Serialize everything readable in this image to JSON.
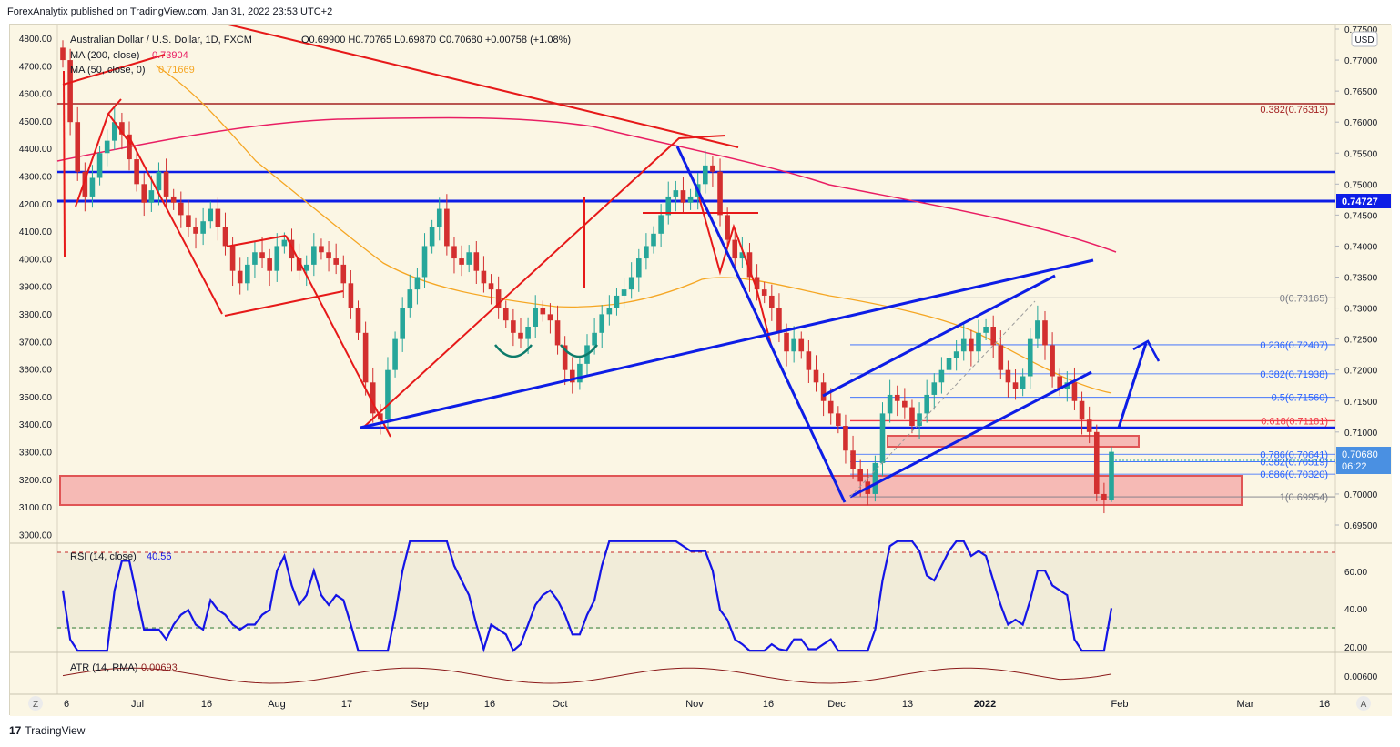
{
  "header": {
    "published_by": "ForexAnalytix published on TradingView.com, Jan 31, 2022 23:53 UTC+2"
  },
  "legend": {
    "symbol": "Australian Dollar / U.S. Dollar, 1D, FXCM",
    "ohlc": "O0.69900  H0.70765  L0.69870  C0.70680  +0.00758 (+1.08%)",
    "ma200_label": "MA (200, close)",
    "ma200_value": "0.73904",
    "ma50_label": "MA (50, close, 0)",
    "ma50_value": "0.71669",
    "rsi_label": "RSI (14, close)",
    "rsi_value": "40.56",
    "atr_label": "ATR (14, RMA)",
    "atr_value": "0.00693"
  },
  "right_axis": {
    "currency": "USD",
    "ticks": [
      "0.77500",
      "0.77000",
      "0.76500",
      "0.76000",
      "0.75500",
      "0.75000",
      "0.74500",
      "0.74000",
      "0.73500",
      "0.73000",
      "0.72500",
      "0.72000",
      "0.71500",
      "0.71000",
      "0.70500",
      "0.70000",
      "0.69500"
    ],
    "level_label": "0.74727",
    "price_label": "0.70680",
    "countdown": "06:22",
    "rsi_ticks": [
      "60.00",
      "40.00",
      "20.00"
    ],
    "atr_ticks": [
      "0.00600"
    ]
  },
  "left_axis": {
    "ticks": [
      "4800.00",
      "4700.00",
      "4600.00",
      "4500.00",
      "4400.00",
      "4300.00",
      "4200.00",
      "4100.00",
      "4000.00",
      "3900.00",
      "3800.00",
      "3700.00",
      "3600.00",
      "3500.00",
      "3400.00",
      "3300.00",
      "3200.00",
      "3100.00",
      "3000.00"
    ]
  },
  "time_axis": {
    "labels": [
      "6",
      "Jul",
      "16",
      "Aug",
      "17",
      "Sep",
      "16",
      "Oct",
      "Nov",
      "16",
      "Dec",
      "13",
      "2022",
      "Feb",
      "Mar",
      "16"
    ],
    "scale_button": "Z",
    "auto_button": "A"
  },
  "fib_top": {
    "label": "0.382(0.76313)"
  },
  "fib_levels": [
    {
      "label": "0(0.73165)",
      "color": "#787b86"
    },
    {
      "label": "0.236(0.72407)",
      "color": "#2962ff"
    },
    {
      "label": "0.382(0.71938)",
      "color": "#2962ff"
    },
    {
      "label": "0.5(0.71560)",
      "color": "#2962ff"
    },
    {
      "label": "0.618(0.71181)",
      "color": "#f23645"
    },
    {
      "label": "0.786(0.70641)",
      "color": "#2962ff"
    },
    {
      "label": "0.382(0.70519)",
      "color": "#2962ff"
    },
    {
      "label": "0.886(0.70320)",
      "color": "#2962ff"
    },
    {
      "label": "1(0.69954)",
      "color": "#787b86"
    }
  ],
  "colors": {
    "bull": "#26a69a",
    "bear": "#d32f2f",
    "ma200": "#e91e63",
    "ma50": "#f5a623",
    "drawing_blue": "#0d1de6",
    "drawing_red": "#e61919",
    "rsi": "#1414e6"
  },
  "chart_data": {
    "type": "candlestick",
    "symbol": "Australian Dollar / U.S. Dollar, 1D, FXCM",
    "ylim": [
      0.6935,
      0.778
    ],
    "last_candle": {
      "open": 0.699,
      "high": 0.70765,
      "low": 0.6987,
      "close": 0.7068
    },
    "rsi_last": 40.56,
    "atr_last": 0.00693,
    "ma200_last": 0.73904,
    "ma50_last": 0.71669,
    "closes": [
      0.77,
      0.76,
      0.752,
      0.748,
      0.751,
      0.755,
      0.757,
      0.76,
      0.758,
      0.754,
      0.75,
      0.747,
      0.749,
      0.752,
      0.748,
      0.747,
      0.745,
      0.743,
      0.742,
      0.744,
      0.746,
      0.743,
      0.74,
      0.736,
      0.734,
      0.737,
      0.739,
      0.738,
      0.736,
      0.74,
      0.741,
      0.738,
      0.736,
      0.737,
      0.74,
      0.739,
      0.738,
      0.737,
      0.734,
      0.73,
      0.726,
      0.718,
      0.713,
      0.712,
      0.72,
      0.725,
      0.73,
      0.733,
      0.735,
      0.74,
      0.743,
      0.746,
      0.74,
      0.738,
      0.737,
      0.739,
      0.736,
      0.734,
      0.733,
      0.73,
      0.728,
      0.726,
      0.725,
      0.727,
      0.73,
      0.729,
      0.728,
      0.724,
      0.72,
      0.718,
      0.721,
      0.724,
      0.726,
      0.729,
      0.73,
      0.732,
      0.733,
      0.735,
      0.738,
      0.74,
      0.742,
      0.745,
      0.748,
      0.749,
      0.747,
      0.748,
      0.75,
      0.753,
      0.752,
      0.745,
      0.741,
      0.738,
      0.739,
      0.735,
      0.733,
      0.732,
      0.73,
      0.726,
      0.723,
      0.725,
      0.723,
      0.72,
      0.718,
      0.715,
      0.713,
      0.711,
      0.707,
      0.704,
      0.702,
      0.7,
      0.705,
      0.713,
      0.716,
      0.715,
      0.714,
      0.711,
      0.713,
      0.716,
      0.718,
      0.72,
      0.722,
      0.723,
      0.725,
      0.723,
      0.726,
      0.727,
      0.724,
      0.72,
      0.718,
      0.717,
      0.719,
      0.725,
      0.728,
      0.724,
      0.719,
      0.717,
      0.718,
      0.715,
      0.712,
      0.71,
      0.7,
      0.699,
      0.7068
    ]
  }
}
